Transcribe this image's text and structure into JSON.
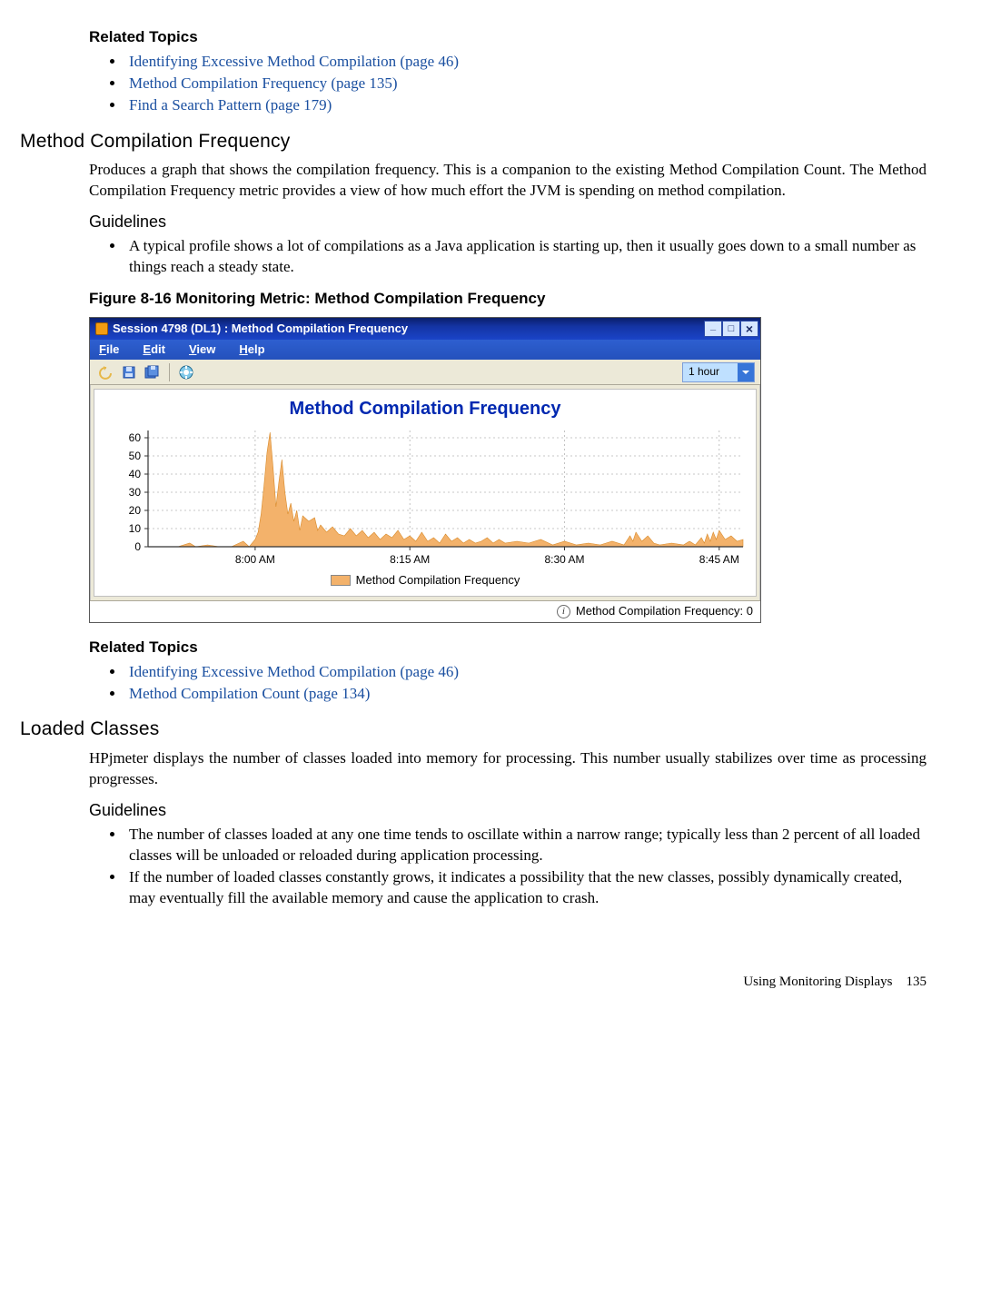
{
  "rt1": {
    "heading": "Related Topics",
    "items": [
      "Identifying Excessive Method Compilation (page 46)",
      "Method Compilation Frequency (page 135)",
      "Find a Search Pattern (page 179)"
    ]
  },
  "sec1": {
    "heading": "Method Compilation Frequency",
    "para": "Produces a graph that shows the compilation frequency. This is a companion to the existing Method Compilation Count. The Method Compilation Frequency metric provides a view of how much effort the JVM is spending on method compilation.",
    "guidelines_heading": "Guidelines",
    "bullets": [
      "A typical profile shows a lot of compilations as a Java application is starting up, then it usually goes down to a small number as things reach a steady state."
    ],
    "figcap": "Figure 8-16 Monitoring Metric: Method Compilation Frequency"
  },
  "win": {
    "title": "Session 4798 (DL1) : Method Compilation Frequency",
    "menus": {
      "file": "File",
      "edit": "Edit",
      "view": "View",
      "help": "Help"
    },
    "combo": "1 hour",
    "chart": {
      "title": "Method Compilation Frequency",
      "series_color": "#f3b26b",
      "grid_color": "#b5b5b5",
      "axis_color": "#333333",
      "bg": "#ffffff",
      "y_ticks": [
        0,
        10,
        20,
        30,
        40,
        50,
        60
      ],
      "x_ticks": [
        "8:00 AM",
        "8:15 AM",
        "8:30 AM",
        "8:45 AM"
      ],
      "x_tick_pos": [
        0.18,
        0.44,
        0.7,
        0.96
      ],
      "y_max": 64,
      "x_domain": [
        0,
        1
      ],
      "data": [
        [
          0.0,
          0
        ],
        [
          0.05,
          0
        ],
        [
          0.07,
          2
        ],
        [
          0.08,
          0
        ],
        [
          0.1,
          1
        ],
        [
          0.12,
          0
        ],
        [
          0.14,
          0
        ],
        [
          0.16,
          3
        ],
        [
          0.17,
          0
        ],
        [
          0.18,
          4
        ],
        [
          0.185,
          8
        ],
        [
          0.19,
          18
        ],
        [
          0.195,
          34
        ],
        [
          0.2,
          52
        ],
        [
          0.205,
          63
        ],
        [
          0.21,
          44
        ],
        [
          0.215,
          22
        ],
        [
          0.22,
          36
        ],
        [
          0.225,
          48
        ],
        [
          0.23,
          30
        ],
        [
          0.235,
          18
        ],
        [
          0.24,
          24
        ],
        [
          0.245,
          14
        ],
        [
          0.25,
          20
        ],
        [
          0.255,
          9
        ],
        [
          0.26,
          17
        ],
        [
          0.27,
          14
        ],
        [
          0.28,
          16
        ],
        [
          0.285,
          9
        ],
        [
          0.29,
          12
        ],
        [
          0.3,
          8
        ],
        [
          0.31,
          11
        ],
        [
          0.32,
          7
        ],
        [
          0.33,
          6
        ],
        [
          0.34,
          10
        ],
        [
          0.35,
          6
        ],
        [
          0.36,
          9
        ],
        [
          0.37,
          5
        ],
        [
          0.38,
          8
        ],
        [
          0.39,
          4
        ],
        [
          0.4,
          7
        ],
        [
          0.41,
          5
        ],
        [
          0.42,
          9
        ],
        [
          0.43,
          4
        ],
        [
          0.44,
          6
        ],
        [
          0.45,
          3
        ],
        [
          0.46,
          8
        ],
        [
          0.47,
          3
        ],
        [
          0.48,
          5
        ],
        [
          0.49,
          2
        ],
        [
          0.5,
          7
        ],
        [
          0.51,
          3
        ],
        [
          0.52,
          5
        ],
        [
          0.53,
          2
        ],
        [
          0.54,
          4
        ],
        [
          0.55,
          2
        ],
        [
          0.56,
          3
        ],
        [
          0.57,
          5
        ],
        [
          0.58,
          2
        ],
        [
          0.59,
          4
        ],
        [
          0.6,
          2
        ],
        [
          0.62,
          3
        ],
        [
          0.64,
          2
        ],
        [
          0.66,
          4
        ],
        [
          0.68,
          1
        ],
        [
          0.7,
          3
        ],
        [
          0.72,
          1
        ],
        [
          0.74,
          2
        ],
        [
          0.76,
          1
        ],
        [
          0.78,
          3
        ],
        [
          0.8,
          1
        ],
        [
          0.81,
          6
        ],
        [
          0.815,
          3
        ],
        [
          0.82,
          8
        ],
        [
          0.83,
          3
        ],
        [
          0.84,
          6
        ],
        [
          0.85,
          2
        ],
        [
          0.86,
          1
        ],
        [
          0.88,
          2
        ],
        [
          0.9,
          1
        ],
        [
          0.91,
          3
        ],
        [
          0.92,
          1
        ],
        [
          0.93,
          5
        ],
        [
          0.935,
          2
        ],
        [
          0.94,
          7
        ],
        [
          0.945,
          3
        ],
        [
          0.95,
          8
        ],
        [
          0.955,
          4
        ],
        [
          0.96,
          9
        ],
        [
          0.97,
          4
        ],
        [
          0.98,
          6
        ],
        [
          0.99,
          3
        ],
        [
          1.0,
          4
        ]
      ],
      "legend": "Method Compilation Frequency",
      "status": "Method Compilation Frequency: 0"
    }
  },
  "rt2": {
    "heading": "Related Topics",
    "items": [
      "Identifying Excessive Method Compilation (page 46)",
      "Method Compilation Count (page 134)"
    ]
  },
  "sec2": {
    "heading": "Loaded Classes",
    "para": "HPjmeter displays the number of classes loaded into memory for processing. This number usually stabilizes over time as processing progresses.",
    "guidelines_heading": "Guidelines",
    "bullets": [
      "The number of classes loaded at any one time tends to oscillate within a narrow range; typically less than 2 percent of all loaded classes will be unloaded or reloaded during application processing.",
      "If the number of loaded classes constantly grows, it indicates a possibility that the new classes, possibly dynamically created, may eventually fill the available memory and cause the application to crash."
    ]
  },
  "footer": {
    "text": "Using Monitoring Displays",
    "page": "135"
  }
}
